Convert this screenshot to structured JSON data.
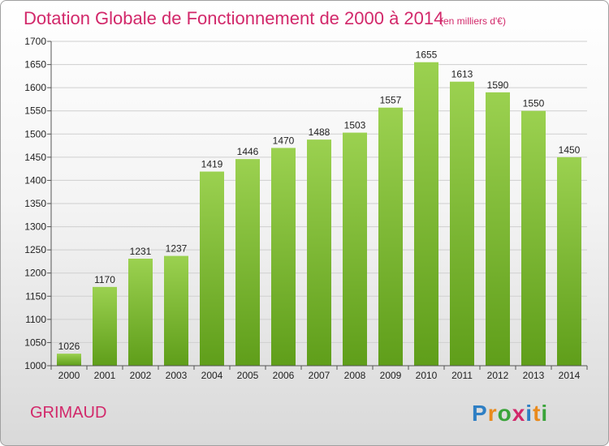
{
  "chart_data": {
    "type": "bar",
    "title": "Dotation Globale de Fonctionnement de 2000 à 2014",
    "subtitle": "(en milliers d'€)",
    "xlabel": "",
    "ylabel": "",
    "categories": [
      "2000",
      "2001",
      "2002",
      "2003",
      "2004",
      "2005",
      "2006",
      "2007",
      "2008",
      "2009",
      "2010",
      "2011",
      "2012",
      "2013",
      "2014"
    ],
    "values": [
      1026,
      1170,
      1231,
      1237,
      1419,
      1446,
      1470,
      1488,
      1503,
      1557,
      1655,
      1613,
      1590,
      1550,
      1450
    ],
    "ylim": [
      1000,
      1700
    ],
    "yticks": [
      1000,
      1050,
      1100,
      1150,
      1200,
      1250,
      1300,
      1350,
      1400,
      1450,
      1500,
      1550,
      1600,
      1650,
      1700
    ],
    "grid": true,
    "legend": "none",
    "bar_color_top": "#9bd150",
    "bar_color_bottom": "#5f9e1a"
  },
  "footer": {
    "commune": "GRIMAUD",
    "logo": "Proxiti"
  },
  "colors": {
    "accent": "#d2286a",
    "grid": "#cfcfcf"
  }
}
